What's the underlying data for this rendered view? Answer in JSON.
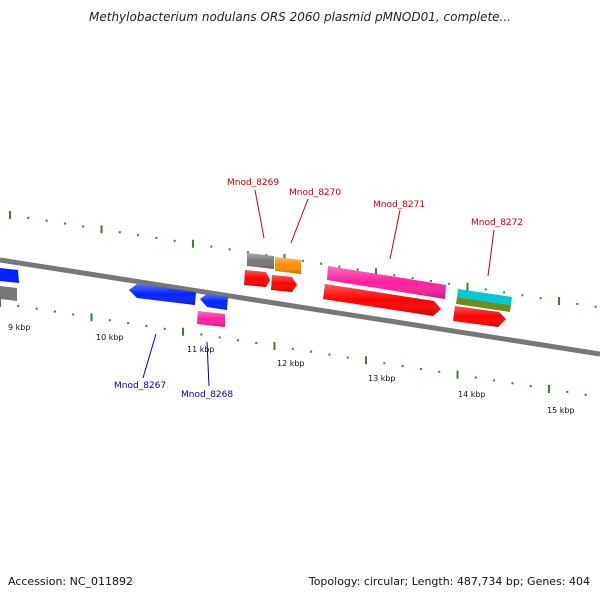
{
  "title": "Methylobacterium nodulans ORS 2060 plasmid pMNOD01, complete...",
  "footer": {
    "accession": "Accession: NC_011892",
    "summary": "Topology: circular; Length: 487,734 bp; Genes: 404"
  },
  "colors": {
    "backbone": "#777777",
    "tick": "#2e8b22",
    "forward_label": "#cc0000",
    "reverse_label": "#0000aa",
    "cds": "#ff0000",
    "pink": "#ff1e9e",
    "gray": "#777777",
    "orange": "#ff8c00",
    "blue": "#0022ff",
    "cyan": "#00c8d8",
    "olive": "#6b8e23"
  },
  "tick_labels": [
    "9 kbp",
    "10 kbp",
    "11 kbp",
    "12 kbp",
    "13 kbp",
    "14 kbp",
    "15 kbp"
  ],
  "genes": [
    {
      "name": "Mnod_8267",
      "strand": "reverse"
    },
    {
      "name": "Mnod_8268",
      "strand": "reverse"
    },
    {
      "name": "Mnod_8269",
      "strand": "forward"
    },
    {
      "name": "Mnod_8270",
      "strand": "forward"
    },
    {
      "name": "Mnod_8271",
      "strand": "forward"
    },
    {
      "name": "Mnod_8272",
      "strand": "forward"
    }
  ]
}
